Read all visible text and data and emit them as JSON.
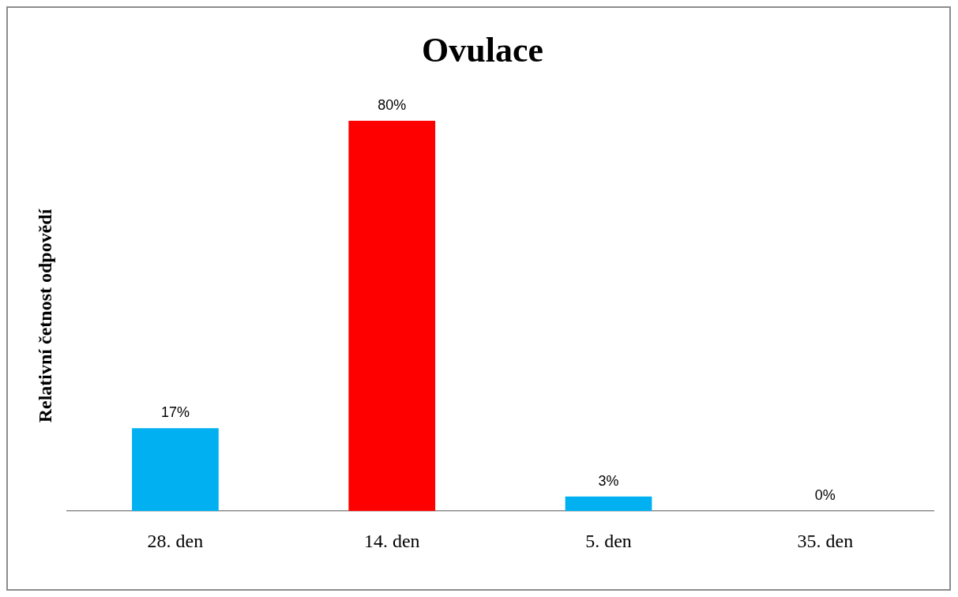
{
  "chart_data": {
    "type": "bar",
    "title": "Ovulace",
    "ylabel": "Relativní četnost odpovědí",
    "categories": [
      "28. den",
      "14. den",
      "5. den",
      "35. den"
    ],
    "values": [
      17,
      80,
      3,
      0
    ],
    "colors": [
      "#00b0f0",
      "#ff0000",
      "#00b0f0",
      "#00b0f0"
    ],
    "value_labels": [
      "17%",
      "80%",
      "3%",
      "0%"
    ],
    "grid": false,
    "legend": false
  }
}
